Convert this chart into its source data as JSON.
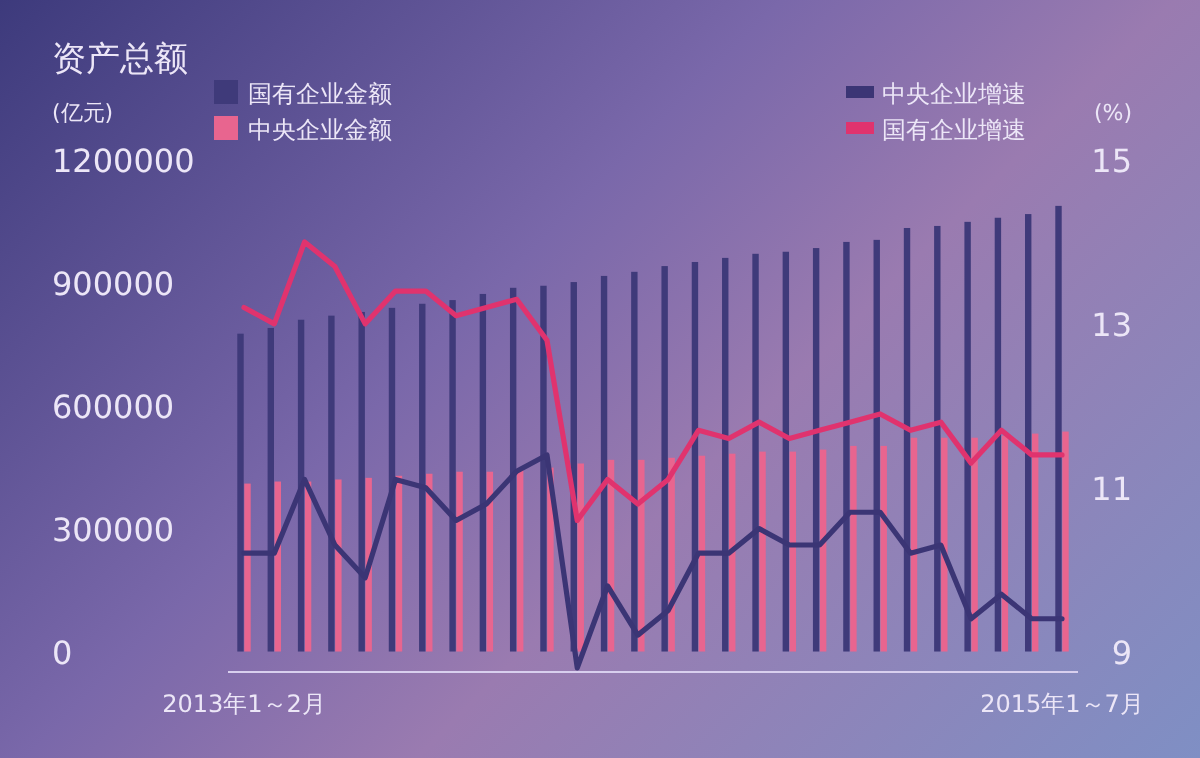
{
  "chart_data": {
    "type": "bar",
    "title": "资产总额",
    "ylabel": "(亿元)",
    "y2label": "(%)",
    "categories": [
      "2013年1～2月",
      null,
      null,
      null,
      null,
      null,
      null,
      null,
      null,
      null,
      null,
      null,
      null,
      null,
      null,
      null,
      null,
      null,
      null,
      null,
      null,
      null,
      null,
      null,
      null,
      null,
      null,
      "2015年1～7月"
    ],
    "ylim": [
      -50000,
      1200000
    ],
    "yticks": [
      0,
      300000,
      600000,
      900000,
      1200000
    ],
    "y2lim": [
      8.75,
      15
    ],
    "y2ticks": [
      9,
      11,
      13,
      15
    ],
    "legend": "top",
    "grid": false,
    "series": [
      {
        "name": "国有企业金额",
        "color": "#3f3a7a",
        "values": [
          776000,
          790000,
          810000,
          820000,
          829000,
          839000,
          849000,
          858000,
          873000,
          888000,
          893000,
          902000,
          917000,
          927000,
          941000,
          951000,
          961000,
          971000,
          976000,
          985000,
          1000000,
          1005000,
          1034000,
          1039000,
          1049000,
          1059000,
          1068000,
          1088000
        ]
      },
      {
        "name": "中央企业金额",
        "color": "#e8658f",
        "values": [
          410000,
          415000,
          415000,
          420000,
          424000,
          429000,
          434000,
          439000,
          439000,
          444000,
          449000,
          459000,
          468000,
          468000,
          473000,
          478000,
          483000,
          488000,
          488000,
          493000,
          502000,
          502000,
          522000,
          522000,
          522000,
          527000,
          532000,
          537000
        ]
      },
      {
        "name": "中央企业增速",
        "type": "line",
        "axis": "y2",
        "color": "#3b3575",
        "values": [
          10.2,
          10.2,
          11.1,
          10.3,
          9.9,
          11.1,
          11.0,
          10.6,
          10.8,
          11.2,
          11.4,
          8.8,
          9.8,
          9.2,
          9.5,
          10.2,
          10.2,
          10.5,
          10.3,
          10.3,
          10.7,
          10.7,
          10.2,
          10.3,
          9.4,
          9.7,
          9.4,
          9.4
        ]
      },
      {
        "name": "国有企业增速",
        "type": "line",
        "axis": "y2",
        "color": "#e0336e",
        "values": [
          13.2,
          13.0,
          14.0,
          13.7,
          13.0,
          13.4,
          13.4,
          13.1,
          13.2,
          13.3,
          12.8,
          10.6,
          11.1,
          10.8,
          11.1,
          11.7,
          11.6,
          11.8,
          11.6,
          11.7,
          11.8,
          11.9,
          11.7,
          11.8,
          11.3,
          11.7,
          11.4,
          11.4
        ]
      }
    ]
  }
}
